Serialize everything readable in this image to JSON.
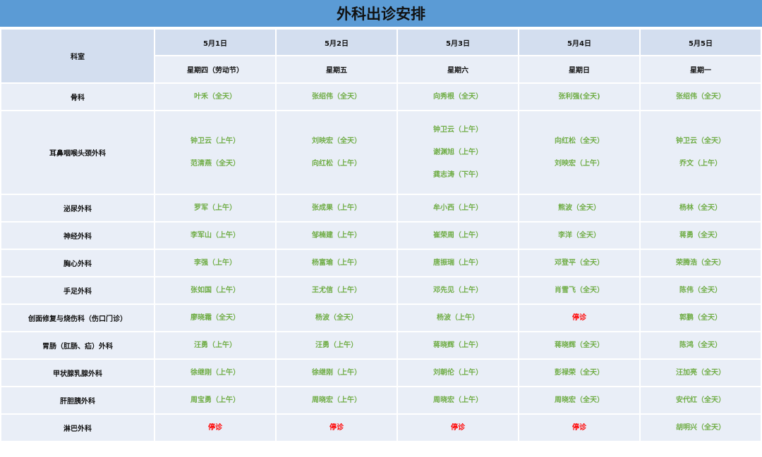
{
  "title": "外科出诊安排",
  "header": {
    "dept_label": "科室",
    "days": [
      {
        "date": "5月1日",
        "weekday": "星期四（劳动节）"
      },
      {
        "date": "5月2日",
        "weekday": "星期五"
      },
      {
        "date": "5月3日",
        "weekday": "星期六"
      },
      {
        "date": "5月4日",
        "weekday": "星期日"
      },
      {
        "date": "5月5日",
        "weekday": "星期一"
      }
    ]
  },
  "colors": {
    "title_bg": "#5b9bd5",
    "header_bg": "#d3deef",
    "cell_bg": "#e9eef7",
    "doctor_text": "#70ad47",
    "closed_text": "#ff0000"
  },
  "closed_label": "停诊",
  "rows": [
    {
      "dept": "骨科",
      "cells": [
        [
          "叶禾（全天）"
        ],
        [
          "张绍伟（全天）"
        ],
        [
          "向秀根（全天）"
        ],
        [
          "张利强(全天)"
        ],
        [
          "张绍伟（全天）"
        ]
      ]
    },
    {
      "dept": "耳鼻咽喉头颈外科",
      "cells": [
        [
          "钟卫云（上午）",
          "范清燕（全天）"
        ],
        [
          "刘映宏（全天）",
          "向红松（上午）"
        ],
        [
          "钟卫云（上午）",
          "谢渊旭（上午）",
          "龚志涛（下午）"
        ],
        [
          "向红松（全天）",
          "刘映宏（上午）"
        ],
        [
          "钟卫云（全天）",
          "乔文（上午）"
        ]
      ]
    },
    {
      "dept": "泌尿外科",
      "cells": [
        [
          "罗军（上午）"
        ],
        [
          "张成果（上午）"
        ],
        [
          "牟小西（上午）"
        ],
        [
          "熊波（全天）"
        ],
        [
          "杨林（全天）"
        ]
      ]
    },
    {
      "dept": "神经外科",
      "cells": [
        [
          "李军山（上午）"
        ],
        [
          "邹楠建（上午）"
        ],
        [
          "崔荣周（上午）"
        ],
        [
          "李洋（全天）"
        ],
        [
          "蒋勇（全天）"
        ]
      ]
    },
    {
      "dept": "胸心外科",
      "cells": [
        [
          "李强（上午）"
        ],
        [
          "杨富瑜（上午）"
        ],
        [
          "唐振瑞（上午）"
        ],
        [
          "邓登平（全天）"
        ],
        [
          "荣腾浩（全天）"
        ]
      ]
    },
    {
      "dept": "手足外科",
      "cells": [
        [
          "张如国（上午）"
        ],
        [
          "王尤信（上午）"
        ],
        [
          "邓先见（上午）"
        ],
        [
          "肖雪飞（全天）"
        ],
        [
          "陈伟（全天）"
        ]
      ]
    },
    {
      "dept": "创面修复与烧伤科（伤口门诊）",
      "cells": [
        [
          "廖晓霜（全天）"
        ],
        [
          "杨波（全天）"
        ],
        [
          "杨波（上午）"
        ],
        [
          "停诊"
        ],
        [
          "郭鹏（全天）"
        ]
      ]
    },
    {
      "dept": "胃肠（肛肠、疝）外科",
      "cells": [
        [
          "汪勇（上午）"
        ],
        [
          "汪勇（上午）"
        ],
        [
          "蒋晓辉（上午）"
        ],
        [
          "蒋晓辉（全天）"
        ],
        [
          "陈鸿（全天）"
        ]
      ]
    },
    {
      "dept": "甲状腺乳腺外科",
      "cells": [
        [
          "徐继刚（上午）"
        ],
        [
          "徐继刚（上午）"
        ],
        [
          "刘朝伦（上午）"
        ],
        [
          "彭禄荣（全天）"
        ],
        [
          "汪加亮（全天）"
        ]
      ]
    },
    {
      "dept": "肝胆胰外科",
      "cells": [
        [
          "周宝勇（上午）"
        ],
        [
          "周晓宏（上午）"
        ],
        [
          "周晓宏（上午）"
        ],
        [
          "周晓宏（全天）"
        ],
        [
          "安代红（全天）"
        ]
      ]
    },
    {
      "dept": "淋巴外科",
      "cells": [
        [
          "停诊"
        ],
        [
          "停诊"
        ],
        [
          "停诊"
        ],
        [
          "停诊"
        ],
        [
          "胡明兴（全天）"
        ]
      ]
    }
  ]
}
